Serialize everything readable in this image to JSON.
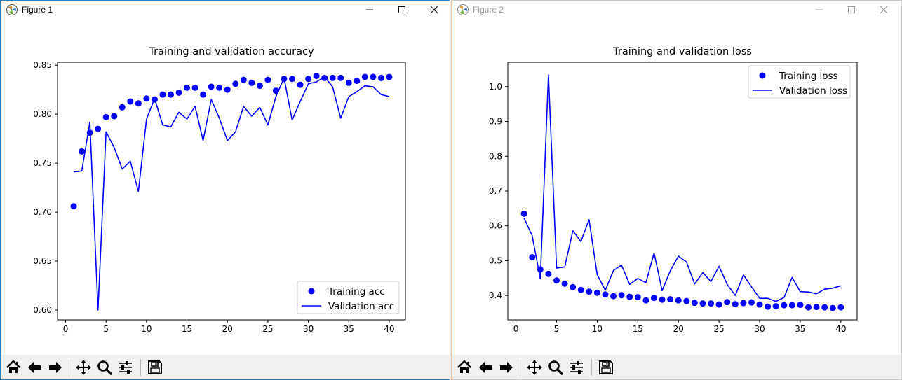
{
  "windows": [
    {
      "title": "Figure 1",
      "chart_data": {
        "type": "line",
        "title": "Training and validation accuracy",
        "xlim": [
          -1,
          42
        ],
        "ylim": [
          0.59,
          0.853
        ],
        "xticks": [
          0,
          5,
          10,
          15,
          20,
          25,
          30,
          35,
          40
        ],
        "yticks": [
          0.6,
          0.65,
          0.7,
          0.75,
          0.8,
          0.85
        ],
        "ytick_decimals": 2,
        "legend_position": "bottom-right",
        "grid": false,
        "x": [
          1,
          2,
          3,
          4,
          5,
          6,
          7,
          8,
          9,
          10,
          11,
          12,
          13,
          14,
          15,
          16,
          17,
          18,
          19,
          20,
          21,
          22,
          23,
          24,
          25,
          26,
          27,
          28,
          29,
          30,
          31,
          32,
          33,
          34,
          35,
          36,
          37,
          38,
          39,
          40
        ],
        "series": [
          {
            "name": "Training acc",
            "style": "dots",
            "values": [
              0.706,
              0.762,
              0.781,
              0.785,
              0.797,
              0.798,
              0.807,
              0.813,
              0.811,
              0.816,
              0.815,
              0.82,
              0.82,
              0.822,
              0.827,
              0.827,
              0.82,
              0.828,
              0.827,
              0.825,
              0.831,
              0.835,
              0.832,
              0.829,
              0.835,
              0.824,
              0.836,
              0.836,
              0.83,
              0.836,
              0.839,
              0.837,
              0.837,
              0.837,
              0.832,
              0.834,
              0.838,
              0.838,
              0.837,
              0.838
            ]
          },
          {
            "name": "Validation acc",
            "style": "line",
            "values": [
              0.741,
              0.742,
              0.792,
              0.6,
              0.782,
              0.766,
              0.744,
              0.752,
              0.721,
              0.795,
              0.816,
              0.789,
              0.787,
              0.802,
              0.795,
              0.808,
              0.773,
              0.815,
              0.796,
              0.773,
              0.782,
              0.808,
              0.798,
              0.807,
              0.789,
              0.818,
              0.837,
              0.794,
              0.813,
              0.831,
              0.833,
              0.838,
              0.828,
              0.796,
              0.818,
              0.823,
              0.829,
              0.828,
              0.82,
              0.818
            ]
          }
        ]
      }
    },
    {
      "title": "Figure 2",
      "chart_data": {
        "type": "line",
        "title": "Training and validation loss",
        "xlim": [
          -1,
          42
        ],
        "ylim": [
          0.33,
          1.07
        ],
        "xticks": [
          0,
          5,
          10,
          15,
          20,
          25,
          30,
          35,
          40
        ],
        "yticks": [
          0.4,
          0.5,
          0.6,
          0.7,
          0.8,
          0.9,
          1.0
        ],
        "ytick_decimals": 1,
        "legend_position": "top-right",
        "grid": false,
        "x": [
          1,
          2,
          3,
          4,
          5,
          6,
          7,
          8,
          9,
          10,
          11,
          12,
          13,
          14,
          15,
          16,
          17,
          18,
          19,
          20,
          21,
          22,
          23,
          24,
          25,
          26,
          27,
          28,
          29,
          30,
          31,
          32,
          33,
          34,
          35,
          36,
          37,
          38,
          39,
          40
        ],
        "series": [
          {
            "name": "Training loss",
            "style": "dots",
            "values": [
              0.635,
              0.51,
              0.475,
              0.462,
              0.443,
              0.434,
              0.424,
              0.416,
              0.411,
              0.408,
              0.403,
              0.398,
              0.401,
              0.396,
              0.395,
              0.386,
              0.393,
              0.388,
              0.389,
              0.386,
              0.384,
              0.379,
              0.377,
              0.377,
              0.374,
              0.381,
              0.375,
              0.378,
              0.38,
              0.374,
              0.368,
              0.369,
              0.372,
              0.372,
              0.373,
              0.366,
              0.367,
              0.366,
              0.364,
              0.366
            ]
          },
          {
            "name": "Validation loss",
            "style": "line",
            "values": [
              0.622,
              0.572,
              0.448,
              1.034,
              0.479,
              0.482,
              0.586,
              0.555,
              0.618,
              0.46,
              0.415,
              0.472,
              0.487,
              0.432,
              0.449,
              0.437,
              0.522,
              0.414,
              0.471,
              0.513,
              0.496,
              0.433,
              0.466,
              0.44,
              0.484,
              0.432,
              0.4,
              0.459,
              0.425,
              0.392,
              0.392,
              0.383,
              0.394,
              0.452,
              0.411,
              0.41,
              0.405,
              0.418,
              0.421,
              0.428
            ]
          }
        ]
      }
    }
  ],
  "colors": {
    "series": "#0000ff",
    "axis": "#000000",
    "titlebar_text_inactive": "#999999"
  },
  "toolbar_icons": [
    "home-icon",
    "back-arrow-icon",
    "forward-arrow-icon",
    "pan-icon",
    "zoom-icon",
    "configure-subplots-icon",
    "save-icon"
  ]
}
